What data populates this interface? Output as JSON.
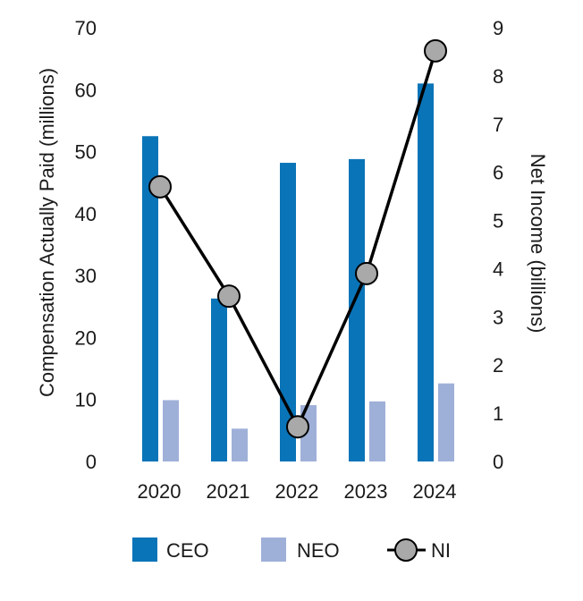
{
  "chart_data": {
    "type": "bar+line",
    "categories": [
      "2020",
      "2021",
      "2022",
      "2023",
      "2024"
    ],
    "series": [
      {
        "name": "CEO",
        "kind": "bar",
        "axis": "left",
        "color": "#0a74b8",
        "values": [
          52.5,
          26.3,
          48.2,
          48.8,
          61
        ]
      },
      {
        "name": "NEO",
        "kind": "bar",
        "axis": "left",
        "color": "#9fb0d8",
        "values": [
          9.9,
          5.3,
          9.1,
          9.7,
          12.6
        ]
      },
      {
        "name": "NI",
        "kind": "line",
        "axis": "right",
        "color": "#000000",
        "marker_color": "#a9a9a9",
        "values": [
          5.7,
          3.43,
          0.72,
          3.9,
          8.52
        ]
      }
    ],
    "ylabel": "Compensation Actually Paid (millions)",
    "ylim": [
      0,
      70
    ],
    "yticks": [
      "0",
      "10",
      "20",
      "30",
      "40",
      "50",
      "60",
      "70"
    ],
    "y2label": "Net Income (billions)",
    "y2lim": [
      0,
      9
    ],
    "y2ticks": [
      "0",
      "1",
      "2",
      "3",
      "4",
      "5",
      "6",
      "7",
      "8",
      "9"
    ],
    "legend": {
      "position": "bottom",
      "entries": [
        "CEO",
        "NEO",
        "NI"
      ]
    }
  }
}
